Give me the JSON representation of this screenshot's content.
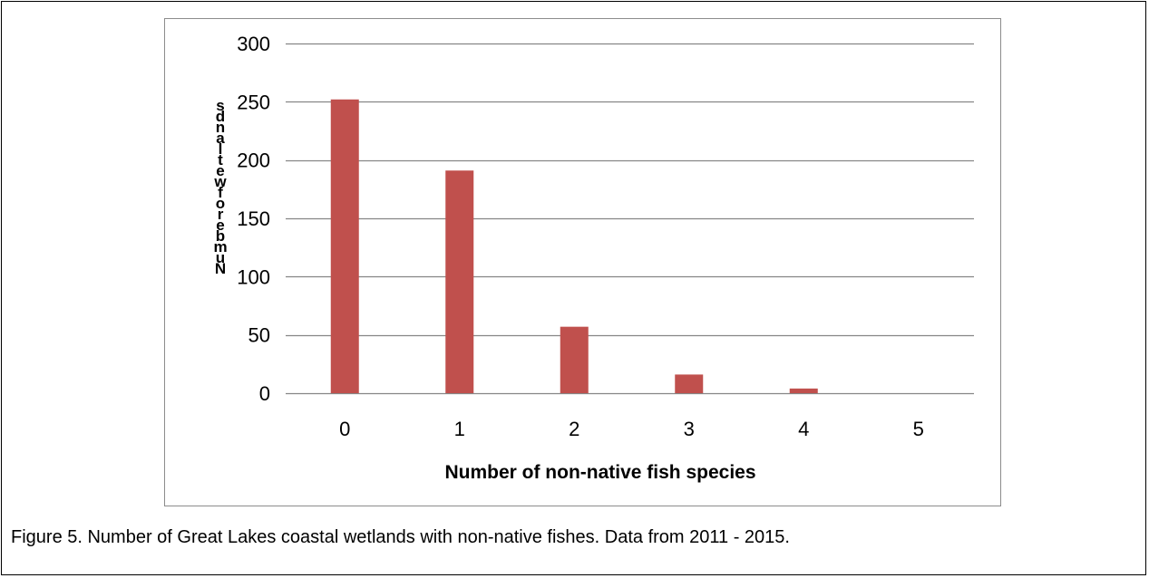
{
  "caption": "Figure 5. Number of Great Lakes coastal wetlands with non-native fishes. Data from 2011 - 2015.",
  "chart_data": {
    "type": "bar",
    "categories": [
      "0",
      "1",
      "2",
      "3",
      "4",
      "5"
    ],
    "values": [
      252,
      191,
      57,
      16,
      4,
      0
    ],
    "xlabel": "Number of non-native fish species",
    "ylabel": "Number of wetlands",
    "ylabel_rendered": "sdnaltew fo rebmuN",
    "ylim": [
      0,
      300
    ],
    "yticks": [
      0,
      50,
      100,
      150,
      200,
      250,
      300
    ],
    "grid": true,
    "legend": "none",
    "bar_color": "#c0504d",
    "grid_color": "#868686"
  }
}
